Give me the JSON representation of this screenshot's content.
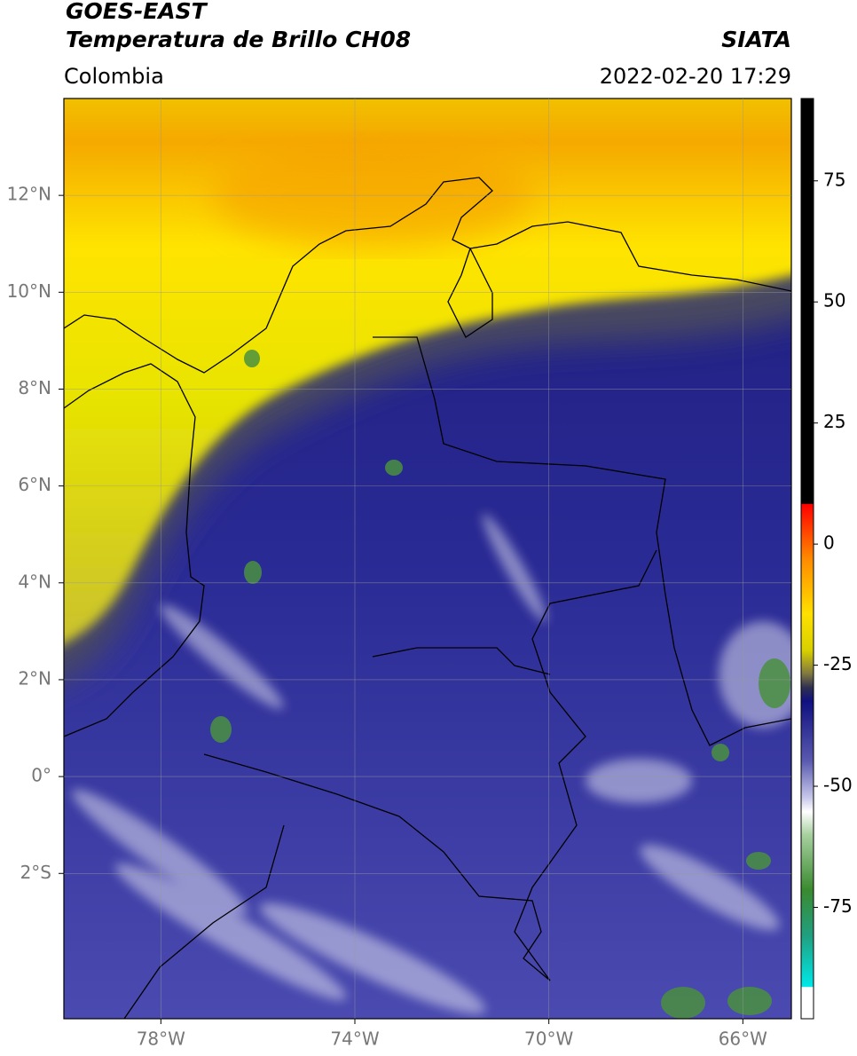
{
  "header": {
    "title_line1": "GOES-EAST",
    "title_line2": "Temperatura de Brillo CH08",
    "region": "Colombia",
    "source": "SIATA",
    "datetime": "2022-02-20 17:29"
  },
  "map": {
    "xlim": [
      -80,
      -65
    ],
    "ylim": [
      -5,
      14
    ],
    "grid": true,
    "xticks": [
      {
        "value": -78,
        "label": "78°W"
      },
      {
        "value": -74,
        "label": "74°W"
      },
      {
        "value": -70,
        "label": "70°W"
      },
      {
        "value": -66,
        "label": "66°W"
      }
    ],
    "yticks": [
      {
        "value": 12,
        "label": "12°N"
      },
      {
        "value": 10,
        "label": "10°N"
      },
      {
        "value": 8,
        "label": "8°N"
      },
      {
        "value": 6,
        "label": "6°N"
      },
      {
        "value": 4,
        "label": "4°N"
      },
      {
        "value": 2,
        "label": "2°N"
      },
      {
        "value": 0,
        "label": "0°"
      },
      {
        "value": -2,
        "label": "2°S"
      }
    ]
  },
  "colorbar": {
    "lim": [
      -98,
      92
    ],
    "ticks": [
      75,
      50,
      25,
      0,
      -25,
      -50,
      -75
    ]
  }
}
